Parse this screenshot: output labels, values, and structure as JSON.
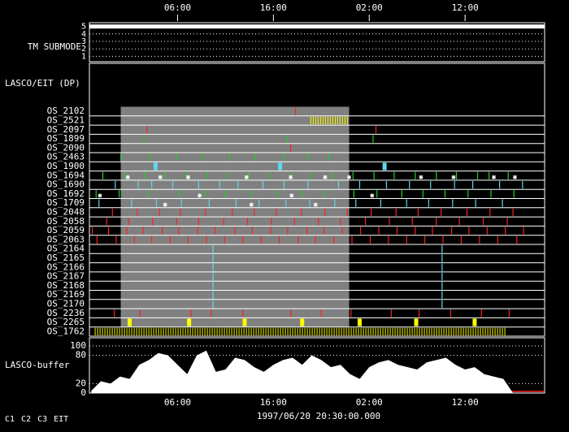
{
  "chart_data": {
    "type": "timeline",
    "xlim": [
      -3.2,
      44.3
    ],
    "xticks": [
      {
        "value": 6,
        "label": "06:00"
      },
      {
        "value": 16,
        "label": "16:00"
      },
      {
        "value": 26,
        "label": "02:00"
      },
      {
        "value": 36,
        "label": "12:00"
      }
    ],
    "date_label": "1997/06/20 20:30:00.000",
    "tm_label": "TM SUBMODE",
    "tm_ylim": [
      0.5,
      5.5
    ],
    "tm_yticks": [
      1,
      2,
      3,
      4,
      5
    ],
    "tm_values": [
      5,
      5
    ],
    "tm_x": [
      -3.2,
      44.3
    ],
    "dp_label": "LASCO/EIT (DP)",
    "shade": [
      0.07,
      23.9
    ],
    "rows": [
      {
        "name": "OS_2102",
        "color": "#ff2020",
        "times": [
          18.3
        ]
      },
      {
        "name": "OS_2521",
        "color": "#ffff00",
        "spans": [
          [
            19.9,
            23.8
          ]
        ]
      },
      {
        "name": "OS_2097",
        "color": "#ff2020",
        "times": [
          2.8,
          26.7
        ]
      },
      {
        "name": "OS_1899",
        "color": "#20d020",
        "times": [
          2.5,
          17.4,
          26.4
        ]
      },
      {
        "name": "OS_2090",
        "color": "#ff2020",
        "times": [
          17.8
        ]
      },
      {
        "name": "OS_2463",
        "color": "#20d020",
        "times": [
          0.07,
          3.1,
          5.9,
          8.6,
          11.4,
          14.1,
          17.1,
          19.6,
          21.8
        ]
      },
      {
        "name": "OS_1900",
        "color": "#60d8f0",
        "blocks": [
          3.7,
          16.7,
          27.6
        ]
      },
      {
        "name": "OS_1694",
        "color": "#20d020",
        "times": [
          -1.8,
          0.5,
          2.6,
          4.7,
          6.9,
          9.1,
          11.2,
          13.4,
          15.6,
          17.8,
          19.9,
          22.1,
          24.3,
          26.5,
          28.6,
          30.8,
          33,
          35.1,
          37.3,
          38.5,
          40.5
        ],
        "eit": [
          0.8,
          4.2,
          7.1,
          13.2,
          17.8,
          21.4,
          23.9,
          31.4,
          34.8,
          39,
          41.2
        ]
      },
      {
        "name": "OS_1690",
        "color": "#60d8f0",
        "times": [
          -0.5,
          1.9,
          3.3,
          5.5,
          8.2,
          10.4,
          12.3,
          14.9,
          17.1,
          19.6,
          22.8,
          25,
          27.8,
          30.2,
          32.4,
          34.9,
          36.8,
          39.6,
          42
        ]
      },
      {
        "name": "OS_1692",
        "color": "#20d020",
        "times": [
          -2.5,
          -0.1,
          3,
          6.2,
          8.8,
          11,
          13.7,
          16.4,
          19,
          21.3,
          24.4,
          26.8,
          29.4,
          31.6,
          33.9,
          36.3,
          38.7,
          41.1
        ],
        "eit": [
          -2.1,
          8.3,
          17.9,
          26.3
        ]
      },
      {
        "name": "OS_1709",
        "color": "#60d8f0",
        "times": [
          -2.2,
          1.2,
          3.8,
          6.4,
          9.3,
          12.1,
          14.5,
          17.3,
          19.8,
          22.4,
          24.6,
          27.2,
          29.9,
          32.2,
          34.7,
          37.1,
          39.9
        ],
        "eit": [
          4.7,
          13.7,
          20.4
        ]
      },
      {
        "name": "OS_2048",
        "color": "#ff2020",
        "times": [
          -0.8,
          1.8,
          4.1,
          6.3,
          8.9,
          11.7,
          14,
          16.3,
          18.9,
          21.4,
          23.7,
          26.2,
          28.8,
          31.1,
          33.5,
          36.2,
          38.6,
          41
        ]
      },
      {
        "name": "OS_2058",
        "color": "#ff2020",
        "times": [
          -1.4,
          0.9,
          3.4,
          5.9,
          8.2,
          10.8,
          13.3,
          15.8,
          18.2,
          20.7,
          23,
          25.6,
          28.1,
          30.5,
          33,
          35.4,
          37.9,
          40.4
        ]
      },
      {
        "name": "OS_2059",
        "color": "#ff2020",
        "times": [
          -2.9,
          -1.2,
          0.7,
          2.4,
          4.4,
          6.1,
          8.1,
          9.9,
          12,
          13.8,
          15.7,
          17.5,
          19.5,
          21.3,
          23.2,
          25.1,
          27,
          28.9,
          30.8,
          32.6,
          34.6,
          36.4,
          38.3,
          40.2,
          42.1
        ]
      },
      {
        "name": "OS_2063",
        "color": "#ff2020",
        "times": [
          -2.4,
          -0.4,
          1.5,
          3.3,
          5.2,
          7.1,
          9,
          10.9,
          12.8,
          14.7,
          16.6,
          18.6,
          20.4,
          22.3,
          24.2,
          26.1,
          28,
          29.9,
          31.8,
          33.7,
          35.6,
          37.5,
          39.4,
          41.4
        ]
      },
      {
        "name": "OS_2164",
        "color": "#60d8f0",
        "times": [
          9.7,
          33.6
        ]
      },
      {
        "name": "OS_2165",
        "color": "#60d8f0",
        "times": [
          9.7,
          33.6
        ]
      },
      {
        "name": "OS_2166",
        "color": "#60d8f0",
        "times": [
          9.7,
          33.6
        ]
      },
      {
        "name": "OS_2167",
        "color": "#60d8f0",
        "times": [
          9.7,
          33.6
        ]
      },
      {
        "name": "OS_2168",
        "color": "#60d8f0",
        "times": [
          9.7,
          33.6
        ]
      },
      {
        "name": "OS_2169",
        "color": "#60d8f0",
        "times": [
          9.7,
          33.6
        ]
      },
      {
        "name": "OS_2170",
        "color": "#60d8f0",
        "times": [
          9.7,
          33.6
        ]
      },
      {
        "name": "OS_2236",
        "color": "#ff2020",
        "times": [
          -0.6,
          2.1,
          7.4,
          9.5,
          12.8,
          17.8,
          21,
          24.1,
          28.3,
          31.2,
          34.5,
          37.7,
          40.6
        ]
      },
      {
        "name": "OS_2265",
        "color": "#ffff00",
        "blocks": [
          1,
          7.2,
          13,
          19,
          25,
          30.9,
          37
        ]
      },
      {
        "name": "OS_1762",
        "color": "#ffff00",
        "spans": [
          [
            -2.6,
            40.4
          ]
        ]
      }
    ],
    "buffer_label": "LASCO-buffer",
    "buffer_ylim": [
      0,
      100
    ],
    "buffer_yticks": [
      0,
      20,
      80,
      100
    ],
    "buffer_x": [
      -3,
      -2,
      -1,
      0,
      1,
      2,
      3,
      4,
      5,
      6,
      7,
      8,
      9,
      10,
      11,
      12,
      13,
      14,
      15,
      16,
      17,
      18,
      19,
      20,
      21,
      22,
      23,
      24,
      25,
      26,
      27,
      28,
      29,
      30,
      31,
      32,
      33,
      34,
      35,
      36,
      37,
      38,
      39,
      40,
      41
    ],
    "buffer_values": [
      5,
      25,
      20,
      35,
      30,
      60,
      70,
      85,
      80,
      60,
      40,
      80,
      90,
      45,
      50,
      75,
      70,
      55,
      45,
      60,
      70,
      75,
      60,
      80,
      70,
      55,
      60,
      40,
      30,
      55,
      65,
      70,
      60,
      55,
      50,
      65,
      70,
      75,
      60,
      50,
      55,
      40,
      35,
      30,
      0
    ],
    "legend": [
      {
        "name": "C1",
        "color": "#ff2020"
      },
      {
        "name": "C2",
        "color": "#20d020"
      },
      {
        "name": "C3",
        "color": "#60d8f0"
      },
      {
        "name": "EIT",
        "color": "#ffffff"
      }
    ]
  }
}
